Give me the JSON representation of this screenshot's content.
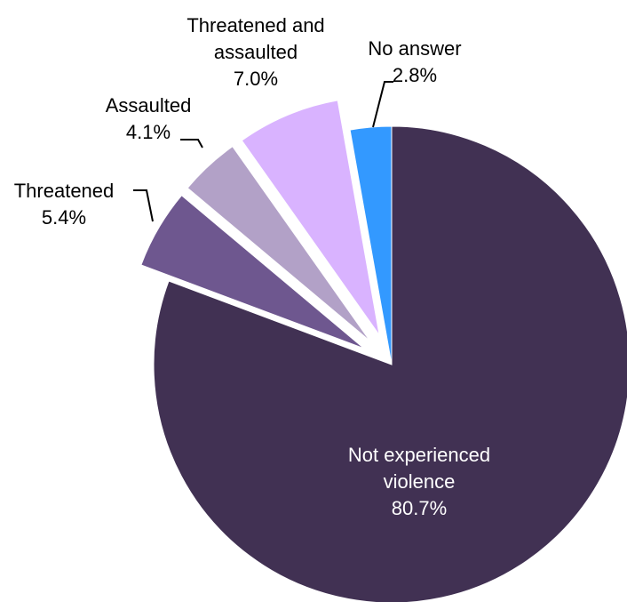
{
  "chart_data": {
    "type": "pie",
    "start_angle_deg": 0,
    "direction": "clockwise",
    "slices": [
      {
        "label": "Not experienced violence",
        "label_lines": [
          "Not experienced",
          "violence"
        ],
        "value_text": "80.7%",
        "value": 80.7,
        "color": "#413153",
        "exploded": false,
        "label_inside": true
      },
      {
        "label": "Threatened",
        "label_lines": [
          "Threatened"
        ],
        "value_text": "5.4%",
        "value": 5.4,
        "color": "#6E578F",
        "exploded": true,
        "label_inside": false
      },
      {
        "label": "Assaulted",
        "label_lines": [
          "Assaulted"
        ],
        "value_text": "4.1%",
        "value": 4.1,
        "color": "#B2A1C7",
        "exploded": true,
        "label_inside": false
      },
      {
        "label": "Threatened and assaulted",
        "label_lines": [
          "Threatened and",
          "assaulted"
        ],
        "value_text": "7.0%",
        "value": 7.0,
        "color": "#D9B3FF",
        "exploded": true,
        "label_inside": false
      },
      {
        "label": "No answer",
        "label_lines": [
          "No answer"
        ],
        "value_text": "2.8%",
        "value": 2.8,
        "color": "#3399FF",
        "exploded": false,
        "label_inside": false
      }
    ]
  }
}
